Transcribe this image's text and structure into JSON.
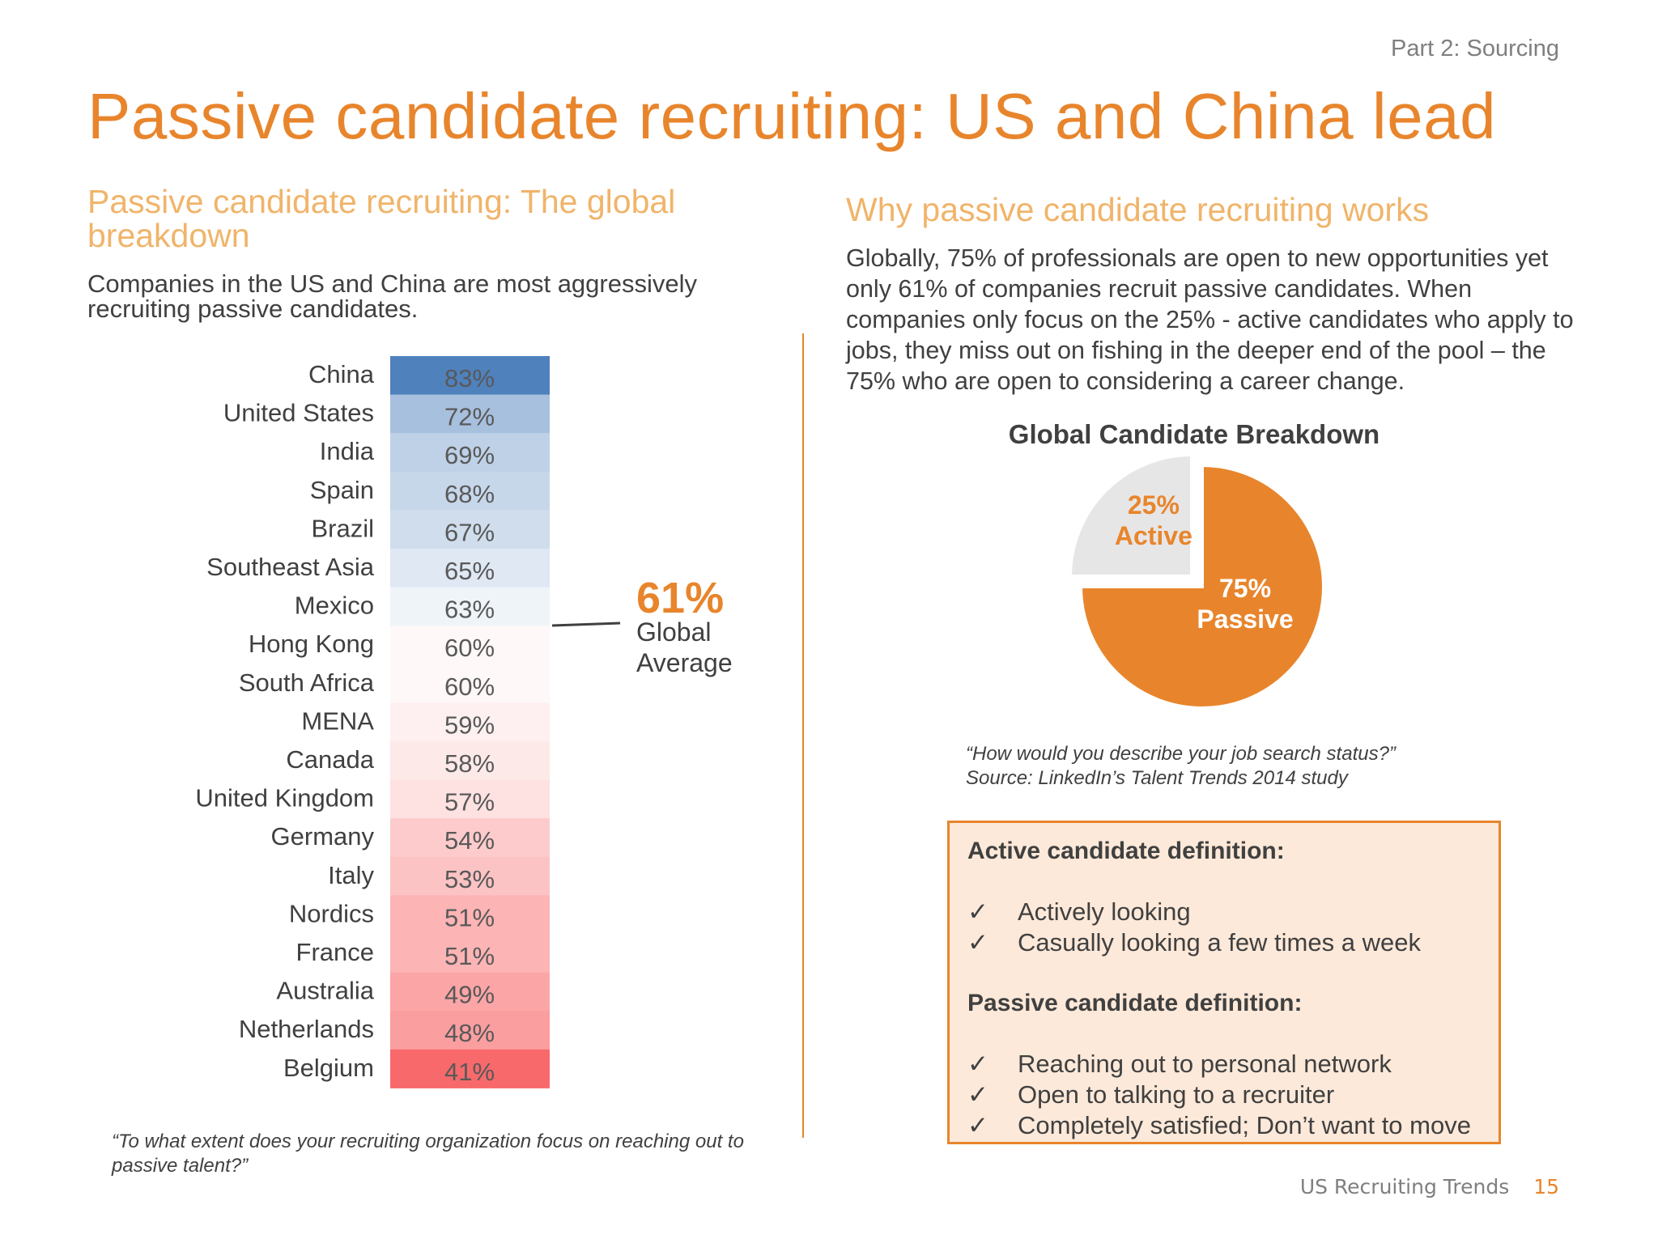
{
  "header": {
    "section": "Part 2: Sourcing",
    "title": "Passive candidate recruiting: US and China lead"
  },
  "left": {
    "heading": "Passive candidate recruiting: The global breakdown",
    "subheading": "Companies in the US and China are most aggressively recruiting passive candidates.",
    "question": "“To what extent does your recruiting organization focus on reaching out to passive talent?”",
    "global_average": {
      "value": "61%",
      "label": "Global Average"
    }
  },
  "right": {
    "heading": "Why passive candidate recruiting works",
    "body": "Globally, 75% of professionals are open to new opportunities yet only 61% of companies recruit passive candidates. When companies only focus on the 25% - active candidates who apply to jobs, they miss out on fishing in the deeper end of the pool – the 75% who are open to considering a career change.",
    "question_line1": "“How would you describe your job search status?”",
    "question_line2": "Source: LinkedIn’s Talent Trends 2014 study",
    "definitions": {
      "active_title": "Active candidate definition:",
      "active_items": [
        "Actively looking",
        "Casually looking a few times a week"
      ],
      "passive_title": "Passive candidate definition:",
      "passive_items": [
        "Reaching out to personal network",
        "Open to talking to a recruiter",
        "Completely satisfied; Don’t want to move"
      ],
      "check_glyph": "✓"
    }
  },
  "footer": {
    "label": "US Recruiting Trends",
    "page": "15"
  },
  "colors": {
    "accent": "#e8852c",
    "accent_light": "#f0b46a",
    "box_fill": "#fde9d9",
    "pie_active": "#e7e6e6"
  },
  "chart_data": [
    {
      "type": "heatmap",
      "categories": [
        "China",
        "United States",
        "India",
        "Spain",
        "Brazil",
        "Southeast Asia",
        "Mexico",
        "Hong Kong",
        "South Africa",
        "MENA",
        "Canada",
        "United Kingdom",
        "Germany",
        "Italy",
        "Nordics",
        "France",
        "Australia",
        "Netherlands",
        "Belgium"
      ],
      "values": [
        83,
        72,
        69,
        68,
        67,
        65,
        63,
        60,
        60,
        59,
        58,
        57,
        54,
        53,
        51,
        51,
        49,
        48,
        41
      ],
      "labels": [
        "83%",
        "72%",
        "69%",
        "68%",
        "67%",
        "65%",
        "63%",
        "60%",
        "60%",
        "59%",
        "58%",
        "57%",
        "54%",
        "53%",
        "51%",
        "51%",
        "49%",
        "48%",
        "41%"
      ],
      "midpoint": 61,
      "colors": {
        "high": "#4f81bd",
        "mid": "#ffffff",
        "low": "#f8696b"
      }
    },
    {
      "type": "pie",
      "title": "Global Candidate Breakdown",
      "slices": [
        {
          "value": 75,
          "pct": "75%",
          "name": "Passive",
          "color": "#e8852c"
        },
        {
          "value": 25,
          "pct": "25%",
          "name": "Active",
          "color": "#e7e6e6"
        }
      ]
    }
  ]
}
